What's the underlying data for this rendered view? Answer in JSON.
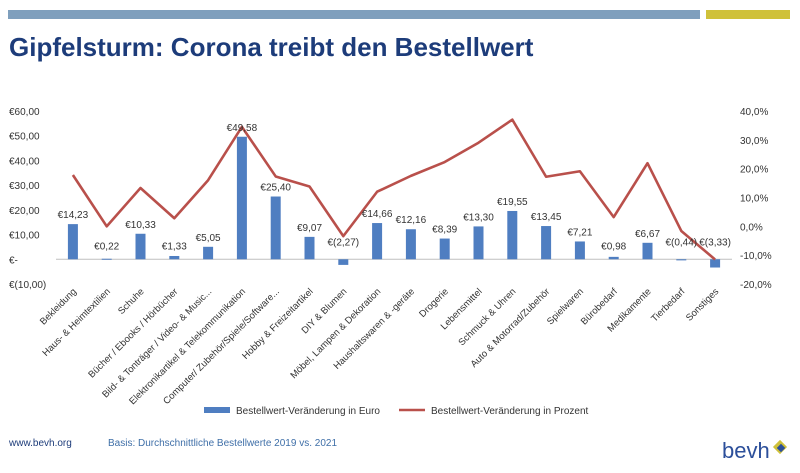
{
  "title": "Gipfelsturm: Corona treibt den Bestellwert",
  "footer": {
    "url": "www.bevh.org",
    "basis": "Basis: Durchschnittliche Bestellwerte 2019 vs. 2021"
  },
  "logo": {
    "text": "bevh"
  },
  "colors": {
    "bar": "#4f7ec1",
    "line": "#b9504b",
    "title": "#1d3c7a",
    "accent_blue": "#7f9fbd",
    "accent_yellow": "#cfc13a"
  },
  "chart_data": {
    "type": "bar+line",
    "categories": [
      "Bekleidung",
      "Haus- & Heimtextilien",
      "Schuhe",
      "Bücher / Ebooks / Hörbücher",
      "Bild- & Tonträger / Video- & Music...",
      "Elektronikartikel & Telekommunikation",
      "Computer/ Zubehör/Spiele/Software...",
      "Hobby & Freizeitartikel",
      "DIY & Blumen",
      "Möbel, Lampen & Dekoration",
      "Haushaltswaren & -geräte",
      "Drogerie",
      "Lebensmittel",
      "Schmuck & Uhren",
      "Auto & Motorrad/Zubehör",
      "Spielwaren",
      "Bürobedarf",
      "Medikamente",
      "Tierbedarf",
      "Sonstiges"
    ],
    "series": [
      {
        "name": "Bestellwert-Veränderung in Euro",
        "type": "bar",
        "axis": "left",
        "values": [
          14.23,
          0.22,
          10.33,
          1.33,
          5.05,
          49.58,
          25.4,
          9.07,
          -2.27,
          14.66,
          12.16,
          8.39,
          13.3,
          19.55,
          13.45,
          7.21,
          0.98,
          6.67,
          -0.44,
          -3.33
        ],
        "labels": [
          "€14,23",
          "€0,22",
          "€10,33",
          "€1,33",
          "€5,05",
          "€49,58",
          "€25,40",
          "€9,07",
          "€(2,27)",
          "€14,66",
          "€12,16",
          "€8,39",
          "€13,30",
          "€19,55",
          "€13,45",
          "€7,21",
          "€0,98",
          "€6,67",
          "€(0,44)",
          "€(3,33)"
        ]
      },
      {
        "name": "Bestellwert-Veränderung in Prozent",
        "type": "line",
        "axis": "right",
        "values": [
          17.8,
          0.0,
          13.3,
          2.8,
          16.0,
          34.5,
          17.3,
          13.8,
          -3.4,
          12.0,
          17.5,
          22.3,
          29.0,
          37.0,
          17.2,
          19.1,
          3.2,
          21.9,
          -1.6,
          -11.5
        ]
      }
    ],
    "y_left": {
      "min": -10,
      "max": 60,
      "ticks": [
        -10,
        0,
        10,
        20,
        30,
        40,
        50,
        60
      ],
      "tick_labels": [
        "€(10,00)",
        "€-",
        "€10,00",
        "€20,00",
        "€30,00",
        "€40,00",
        "€50,00",
        "€60,00"
      ]
    },
    "y_right": {
      "min": -20,
      "max": 40,
      "ticks": [
        -20,
        -10,
        0,
        10,
        20,
        30,
        40
      ],
      "tick_labels": [
        "-20,0%",
        "-10,0%",
        "0,0%",
        "10,0%",
        "20,0%",
        "30,0%",
        "40,0%"
      ]
    },
    "grid": false,
    "legend": "bottom"
  }
}
